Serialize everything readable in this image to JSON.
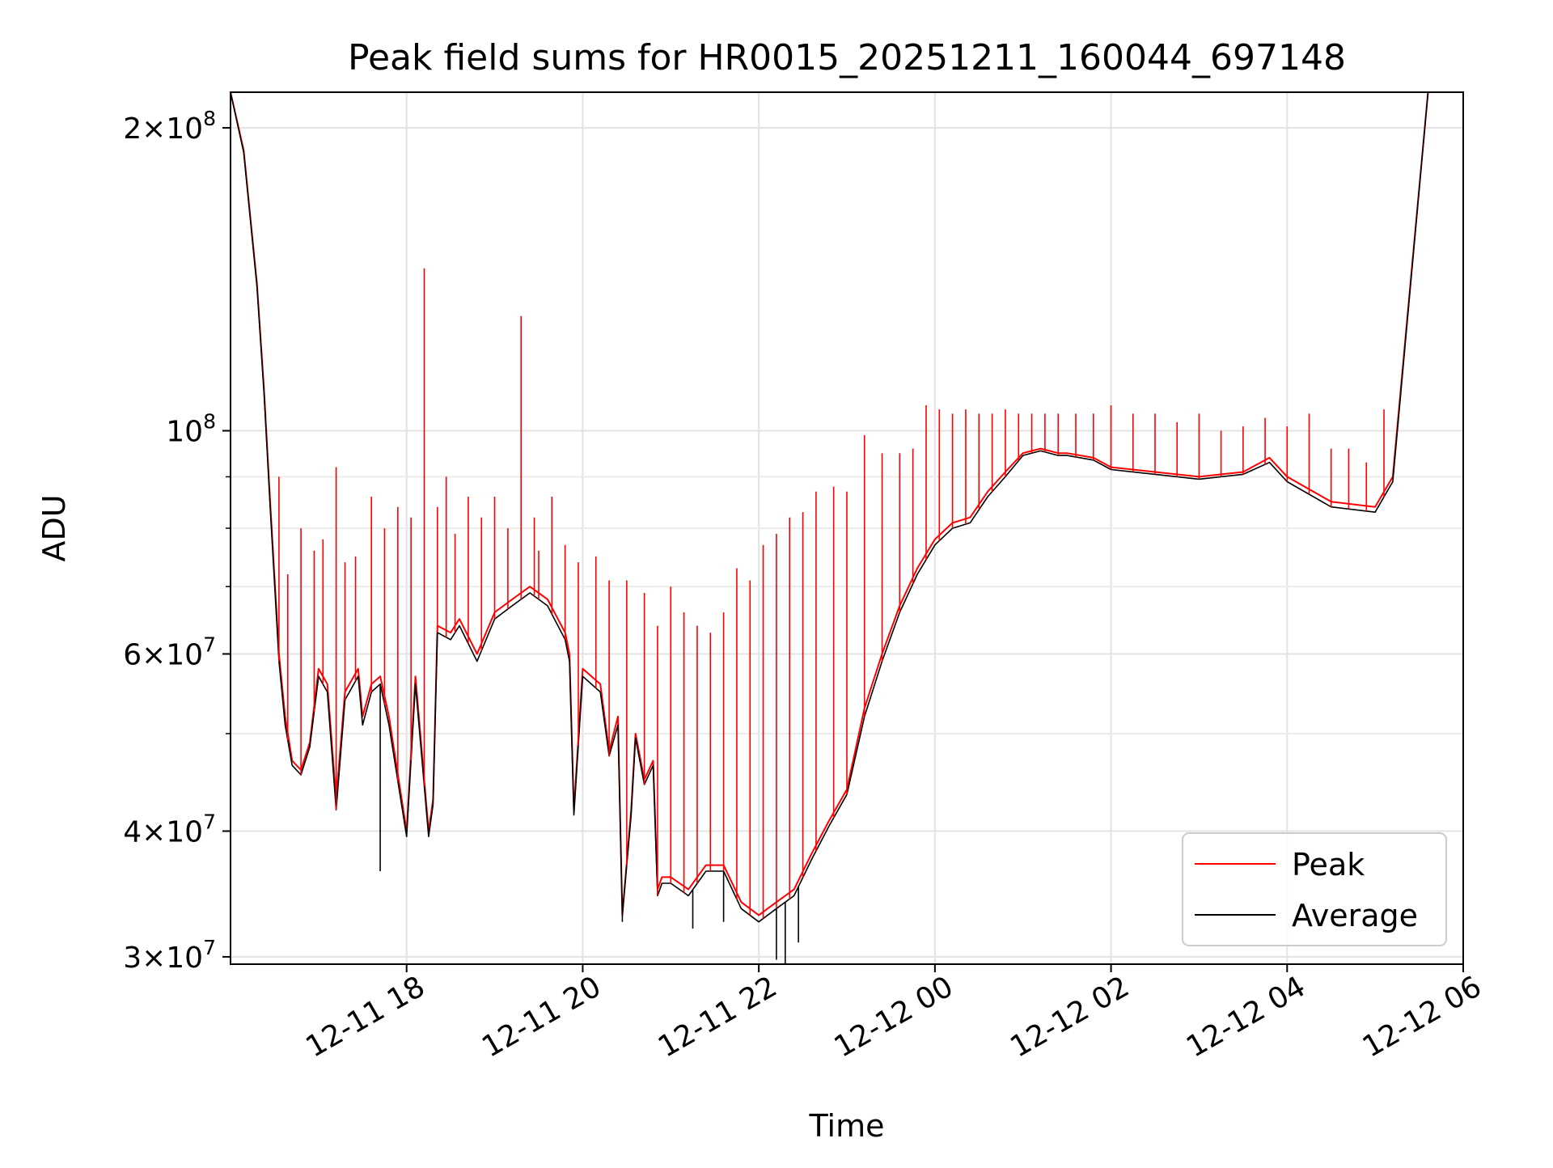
{
  "chart_data": {
    "type": "line",
    "title": "Peak field sums for HR0015_20251211_160044_697148",
    "xlabel": "Time",
    "ylabel": "ADU",
    "yscale": "log",
    "xlim": [
      16.0,
      30.0
    ],
    "ylim": [
      29500000,
      217000000
    ],
    "grid": true,
    "legend_position": "lower-right",
    "x_ticks": [
      {
        "value": 18,
        "label": "12-11 18"
      },
      {
        "value": 20,
        "label": "12-11 20"
      },
      {
        "value": 22,
        "label": "12-11 22"
      },
      {
        "value": 24,
        "label": "12-12 00"
      },
      {
        "value": 26,
        "label": "12-12 02"
      },
      {
        "value": 28,
        "label": "12-12 04"
      },
      {
        "value": 30,
        "label": "12-12 06"
      }
    ],
    "y_major_ticks": [
      {
        "value": 30000000,
        "mant": "3",
        "exp": "7"
      },
      {
        "value": 40000000,
        "mant": "4",
        "exp": "7"
      },
      {
        "value": 60000000,
        "mant": "6",
        "exp": "7"
      },
      {
        "value": 100000000,
        "mant": "",
        "exp": "8"
      },
      {
        "value": 200000000,
        "mant": "2",
        "exp": "8"
      }
    ],
    "y_minor_ticks": [
      50000000,
      70000000,
      80000000,
      90000000
    ],
    "series": [
      {
        "name": "Peak",
        "color": "#ff0000",
        "x": [
          16.0,
          16.15,
          16.3,
          16.38,
          16.45,
          16.55,
          16.62,
          16.7,
          16.8,
          16.9,
          17.0,
          17.1,
          17.2,
          17.3,
          17.45,
          17.5,
          17.6,
          17.7,
          17.8,
          18.0,
          18.1,
          18.25,
          18.3,
          18.35,
          18.5,
          18.6,
          18.8,
          19.0,
          19.2,
          19.4,
          19.6,
          19.8,
          19.85,
          19.9,
          20.0,
          20.2,
          20.3,
          20.4,
          20.45,
          20.55,
          20.6,
          20.7,
          20.8,
          20.85,
          20.9,
          21.0,
          21.2,
          21.4,
          21.6,
          21.8,
          22.0,
          22.2,
          22.4,
          22.6,
          22.8,
          23.0,
          23.2,
          23.4,
          23.6,
          23.8,
          24.0,
          24.2,
          24.4,
          24.6,
          24.8,
          25.0,
          25.2,
          25.4,
          25.5,
          25.8,
          26.0,
          26.5,
          27.0,
          27.5,
          27.8,
          28.0,
          28.5,
          29.0,
          29.2,
          29.4,
          29.6,
          30.0
        ],
        "y": [
          217000000,
          190000000,
          140000000,
          110000000,
          85000000,
          60000000,
          52000000,
          47000000,
          46000000,
          49000000,
          58000000,
          56000000,
          43000000,
          55000000,
          58000000,
          52000000,
          56000000,
          57000000,
          52000000,
          40000000,
          57000000,
          40000000,
          43000000,
          64000000,
          63000000,
          65000000,
          60000000,
          66000000,
          68000000,
          70000000,
          68000000,
          63000000,
          60000000,
          42000000,
          58000000,
          56000000,
          48000000,
          52000000,
          33000000,
          42000000,
          50000000,
          45000000,
          47000000,
          35000000,
          36000000,
          36000000,
          35000000,
          37000000,
          37000000,
          34000000,
          33000000,
          34000000,
          35000000,
          38000000,
          41000000,
          44000000,
          53000000,
          60000000,
          67000000,
          73000000,
          78000000,
          81000000,
          82000000,
          87000000,
          91000000,
          95000000,
          96000000,
          95000000,
          95000000,
          94000000,
          92000000,
          91000000,
          90000000,
          91000000,
          94000000,
          90000000,
          85000000,
          84000000,
          90000000,
          140000000,
          217000000,
          217000000
        ]
      },
      {
        "name": "Average",
        "color": "#000000",
        "x": [
          16.0,
          16.15,
          16.3,
          16.38,
          16.45,
          16.55,
          16.62,
          16.7,
          16.8,
          16.9,
          17.0,
          17.1,
          17.2,
          17.3,
          17.45,
          17.5,
          17.6,
          17.7,
          17.8,
          18.0,
          18.1,
          18.25,
          18.3,
          18.35,
          18.5,
          18.6,
          18.8,
          19.0,
          19.2,
          19.4,
          19.6,
          19.8,
          19.85,
          19.9,
          20.0,
          20.2,
          20.3,
          20.4,
          20.45,
          20.55,
          20.6,
          20.7,
          20.8,
          20.85,
          20.9,
          21.0,
          21.2,
          21.4,
          21.6,
          21.8,
          22.0,
          22.2,
          22.4,
          22.6,
          22.8,
          23.0,
          23.2,
          23.4,
          23.6,
          23.8,
          24.0,
          24.2,
          24.4,
          24.6,
          24.8,
          25.0,
          25.2,
          25.4,
          25.5,
          25.8,
          26.0,
          26.5,
          27.0,
          27.5,
          27.8,
          28.0,
          28.5,
          29.0,
          29.2,
          29.4,
          29.6,
          30.0
        ],
        "y": [
          217000000,
          189000000,
          139000000,
          109000000,
          84000000,
          59000000,
          51000000,
          46500000,
          45500000,
          48500000,
          57000000,
          55000000,
          42000000,
          54000000,
          57000000,
          51000000,
          55000000,
          56000000,
          51000000,
          39500000,
          56000000,
          39500000,
          42500000,
          63000000,
          62000000,
          64000000,
          59000000,
          65000000,
          67000000,
          69000000,
          67000000,
          62000000,
          59000000,
          41500000,
          57000000,
          55000000,
          47500000,
          51000000,
          33000000,
          41500000,
          49500000,
          44500000,
          46500000,
          34500000,
          35500000,
          35500000,
          34500000,
          36500000,
          36500000,
          33500000,
          32500000,
          33500000,
          34500000,
          37500000,
          40500000,
          43500000,
          52000000,
          59000000,
          66000000,
          72000000,
          77000000,
          80000000,
          81000000,
          86000000,
          90000000,
          94500000,
          95500000,
          94500000,
          94500000,
          93500000,
          91500000,
          90500000,
          89500000,
          90500000,
          93000000,
          89000000,
          84000000,
          83000000,
          89000000,
          139000000,
          217000000,
          217000000
        ]
      }
    ],
    "peak_spikes": {
      "x": [
        16.55,
        16.65,
        16.8,
        16.95,
        17.05,
        17.2,
        17.3,
        17.42,
        17.6,
        17.75,
        17.9,
        18.05,
        18.2,
        18.35,
        18.45,
        18.55,
        18.7,
        18.85,
        19.0,
        19.15,
        19.3,
        19.45,
        19.5,
        19.65,
        19.8,
        19.95,
        20.15,
        20.3,
        20.5,
        20.7,
        20.85,
        21.0,
        21.15,
        21.3,
        21.45,
        21.6,
        21.75,
        21.9,
        22.05,
        22.2,
        22.35,
        22.5,
        22.65,
        22.85,
        23.0,
        23.2,
        23.4,
        23.6,
        23.75,
        23.9,
        24.05,
        24.2,
        24.35,
        24.5,
        24.65,
        24.8,
        24.95,
        25.1,
        25.25,
        25.4,
        25.6,
        25.8,
        26.0,
        26.25,
        26.5,
        26.75,
        27.0,
        27.25,
        27.5,
        27.75,
        28.0,
        28.25,
        28.5,
        28.7,
        28.9,
        29.1
      ],
      "y": [
        90000000,
        72000000,
        80000000,
        76000000,
        78000000,
        92000000,
        74000000,
        75000000,
        86000000,
        80000000,
        84000000,
        82000000,
        145000000,
        84000000,
        90000000,
        79000000,
        86000000,
        82000000,
        86000000,
        80000000,
        130000000,
        82000000,
        76000000,
        86000000,
        77000000,
        74000000,
        75000000,
        71000000,
        71000000,
        69000000,
        64000000,
        70000000,
        66000000,
        64000000,
        63000000,
        66000000,
        73000000,
        71000000,
        77000000,
        79000000,
        82000000,
        83000000,
        87000000,
        88000000,
        87000000,
        99000000,
        95000000,
        95000000,
        96000000,
        106000000,
        105000000,
        104000000,
        105000000,
        104000000,
        104000000,
        105000000,
        104000000,
        104000000,
        104000000,
        104000000,
        104000000,
        104000000,
        106000000,
        104000000,
        104000000,
        102000000,
        104000000,
        100000000,
        101000000,
        103000000,
        101000000,
        104000000,
        96000000,
        96000000,
        93000000,
        105000000
      ]
    },
    "average_dips": {
      "x": [
        17.7,
        20.45,
        21.25,
        21.6,
        22.2,
        22.3,
        22.45
      ],
      "y": [
        36500000,
        32500000,
        32000000,
        32500000,
        29800000,
        29500000,
        31000000
      ]
    }
  }
}
